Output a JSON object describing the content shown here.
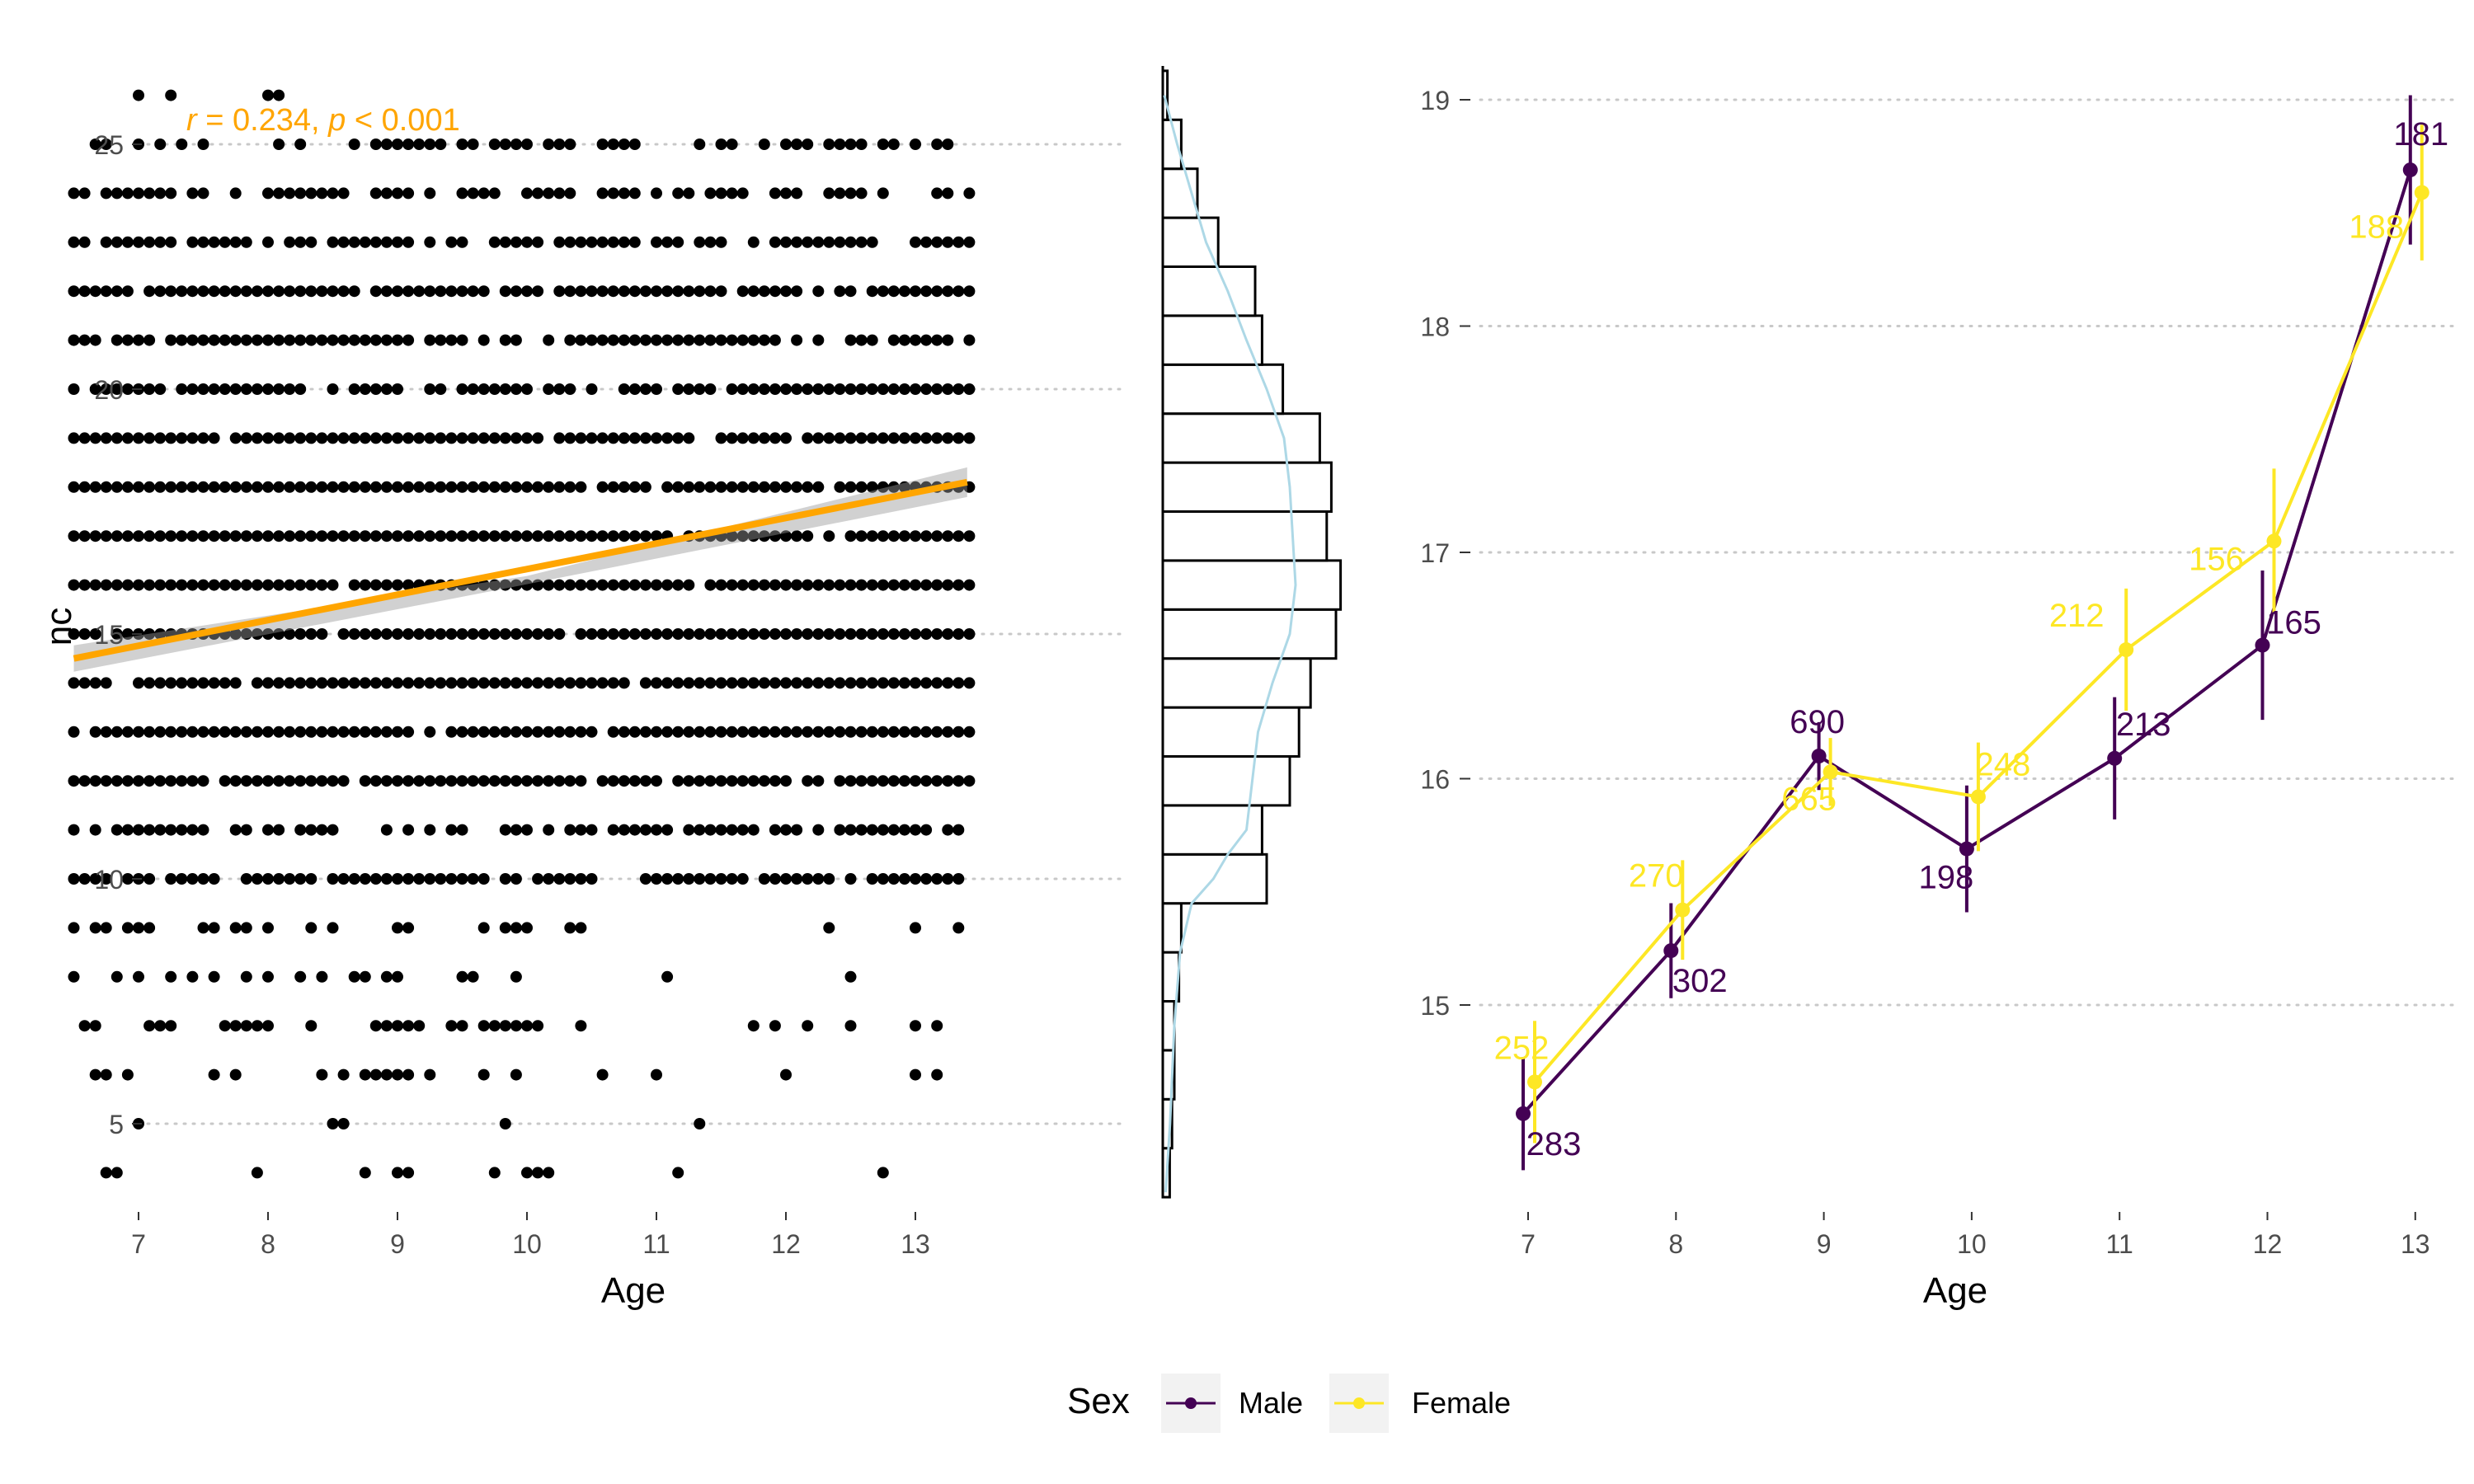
{
  "chart_data": [
    {
      "type": "scatter",
      "title": "",
      "xlabel": "Age",
      "ylabel": "nc",
      "xlim": [
        6.4,
        13.5
      ],
      "ylim": [
        3.2,
        26.8
      ],
      "x_ticks": [
        "7",
        "8",
        "9",
        "10",
        "11",
        "12",
        "13"
      ],
      "y_ticks": [
        "5",
        "10",
        "15",
        "20",
        "25"
      ],
      "grid": "horizontal dotted",
      "annotation": {
        "r_label": "r",
        "r_text": " = 0.234, ",
        "p_label": "p",
        "p_text": " < 0.001"
      },
      "regression_line": {
        "x": [
          6.5,
          13.4
        ],
        "y": [
          14.5,
          18.1
        ],
        "color": "#FFA500"
      },
      "point_color": "#000000",
      "nc_levels": [
        4,
        5,
        6,
        7,
        8,
        9,
        10,
        11,
        12,
        13,
        14,
        15,
        16,
        17,
        18,
        19,
        20,
        21,
        22,
        23,
        24,
        25,
        26
      ],
      "level_density": [
        0.2,
        0.2,
        0.4,
        0.45,
        0.4,
        0.45,
        0.8,
        0.75,
        0.85,
        0.95,
        0.95,
        0.97,
        0.97,
        0.97,
        0.97,
        0.96,
        0.9,
        0.85,
        0.85,
        0.8,
        0.7,
        0.55,
        0.12
      ],
      "marginal_histogram": {
        "orientation": "horizontal",
        "bins": [
          {
            "y0": 3.5,
            "y1": 4.5,
            "count": 3
          },
          {
            "y0": 4.5,
            "y1": 5.5,
            "count": 4
          },
          {
            "y0": 5.5,
            "y1": 6.5,
            "count": 5
          },
          {
            "y0": 6.5,
            "y1": 7.5,
            "count": 5
          },
          {
            "y0": 7.5,
            "y1": 8.5,
            "count": 7
          },
          {
            "y0": 8.5,
            "y1": 9.5,
            "count": 8
          },
          {
            "y0": 9.5,
            "y1": 10.5,
            "count": 45
          },
          {
            "y0": 10.5,
            "y1": 11.5,
            "count": 43
          },
          {
            "y0": 11.5,
            "y1": 12.5,
            "count": 55
          },
          {
            "y0": 12.5,
            "y1": 13.5,
            "count": 59
          },
          {
            "y0": 13.5,
            "y1": 14.5,
            "count": 64
          },
          {
            "y0": 14.5,
            "y1": 15.5,
            "count": 75
          },
          {
            "y0": 15.5,
            "y1": 16.5,
            "count": 77
          },
          {
            "y0": 16.5,
            "y1": 17.5,
            "count": 71
          },
          {
            "y0": 17.5,
            "y1": 18.5,
            "count": 73
          },
          {
            "y0": 18.5,
            "y1": 19.5,
            "count": 68
          },
          {
            "y0": 19.5,
            "y1": 20.5,
            "count": 52
          },
          {
            "y0": 20.5,
            "y1": 21.5,
            "count": 43
          },
          {
            "y0": 21.5,
            "y1": 22.5,
            "count": 40
          },
          {
            "y0": 22.5,
            "y1": 23.5,
            "count": 24
          },
          {
            "y0": 23.5,
            "y1": 24.5,
            "count": 15
          },
          {
            "y0": 24.5,
            "y1": 25.5,
            "count": 8
          },
          {
            "y0": 25.5,
            "y1": 26.5,
            "count": 2
          }
        ],
        "density_color": "#ADD8E6",
        "density": [
          {
            "y": 3.6,
            "v": 0.02
          },
          {
            "y": 5,
            "v": 0.05
          },
          {
            "y": 7,
            "v": 0.08
          },
          {
            "y": 8.5,
            "v": 0.12
          },
          {
            "y": 9.5,
            "v": 0.2
          },
          {
            "y": 10,
            "v": 0.35
          },
          {
            "y": 10.5,
            "v": 0.45
          },
          {
            "y": 11,
            "v": 0.58
          },
          {
            "y": 12,
            "v": 0.62
          },
          {
            "y": 13,
            "v": 0.66
          },
          {
            "y": 14,
            "v": 0.76
          },
          {
            "y": 15,
            "v": 0.88
          },
          {
            "y": 16,
            "v": 0.92
          },
          {
            "y": 17,
            "v": 0.9
          },
          {
            "y": 18,
            "v": 0.88
          },
          {
            "y": 19,
            "v": 0.84
          },
          {
            "y": 20,
            "v": 0.72
          },
          {
            "y": 21,
            "v": 0.58
          },
          {
            "y": 22,
            "v": 0.45
          },
          {
            "y": 23,
            "v": 0.3
          },
          {
            "y": 24,
            "v": 0.2
          },
          {
            "y": 25,
            "v": 0.1
          },
          {
            "y": 26,
            "v": 0.01
          }
        ]
      }
    },
    {
      "type": "line",
      "title": "",
      "xlabel": "Age",
      "ylabel": "",
      "xlim": [
        6.6,
        13.15
      ],
      "ylim": [
        14.05,
        19.3
      ],
      "x_ticks": [
        "7",
        "8",
        "9",
        "10",
        "11",
        "12",
        "13"
      ],
      "y_ticks": [
        "15",
        "16",
        "17",
        "18",
        "19"
      ],
      "grid": "horizontal dotted",
      "legend": {
        "title": "Sex",
        "position": "bottom",
        "entries": [
          "Male",
          "Female"
        ]
      },
      "series": [
        {
          "name": "Male",
          "color": "#440154",
          "x": [
            7,
            8,
            9,
            10,
            11,
            12,
            13
          ],
          "y": [
            14.52,
            15.24,
            16.1,
            15.69,
            16.09,
            16.59,
            18.69
          ],
          "err_low": [
            14.27,
            15.03,
            15.95,
            15.41,
            15.82,
            16.26,
            18.36
          ],
          "err_high": [
            14.77,
            15.45,
            16.25,
            15.97,
            16.36,
            16.92,
            19.02
          ],
          "counts": [
            "283",
            "302",
            "690",
            "198",
            "213",
            "165",
            "181"
          ]
        },
        {
          "name": "Female",
          "color": "#FDE725",
          "x": [
            7,
            8,
            9,
            10,
            11,
            12,
            13
          ],
          "y": [
            14.66,
            15.42,
            16.03,
            15.92,
            16.57,
            17.05,
            18.59
          ],
          "err_low": [
            14.39,
            15.2,
            15.88,
            15.68,
            16.3,
            16.73,
            18.29
          ],
          "err_high": [
            14.93,
            15.64,
            16.18,
            16.16,
            16.84,
            17.37,
            18.89
          ],
          "counts": [
            "252",
            "270",
            "665",
            "248",
            "212",
            "156",
            "188"
          ]
        }
      ]
    }
  ]
}
